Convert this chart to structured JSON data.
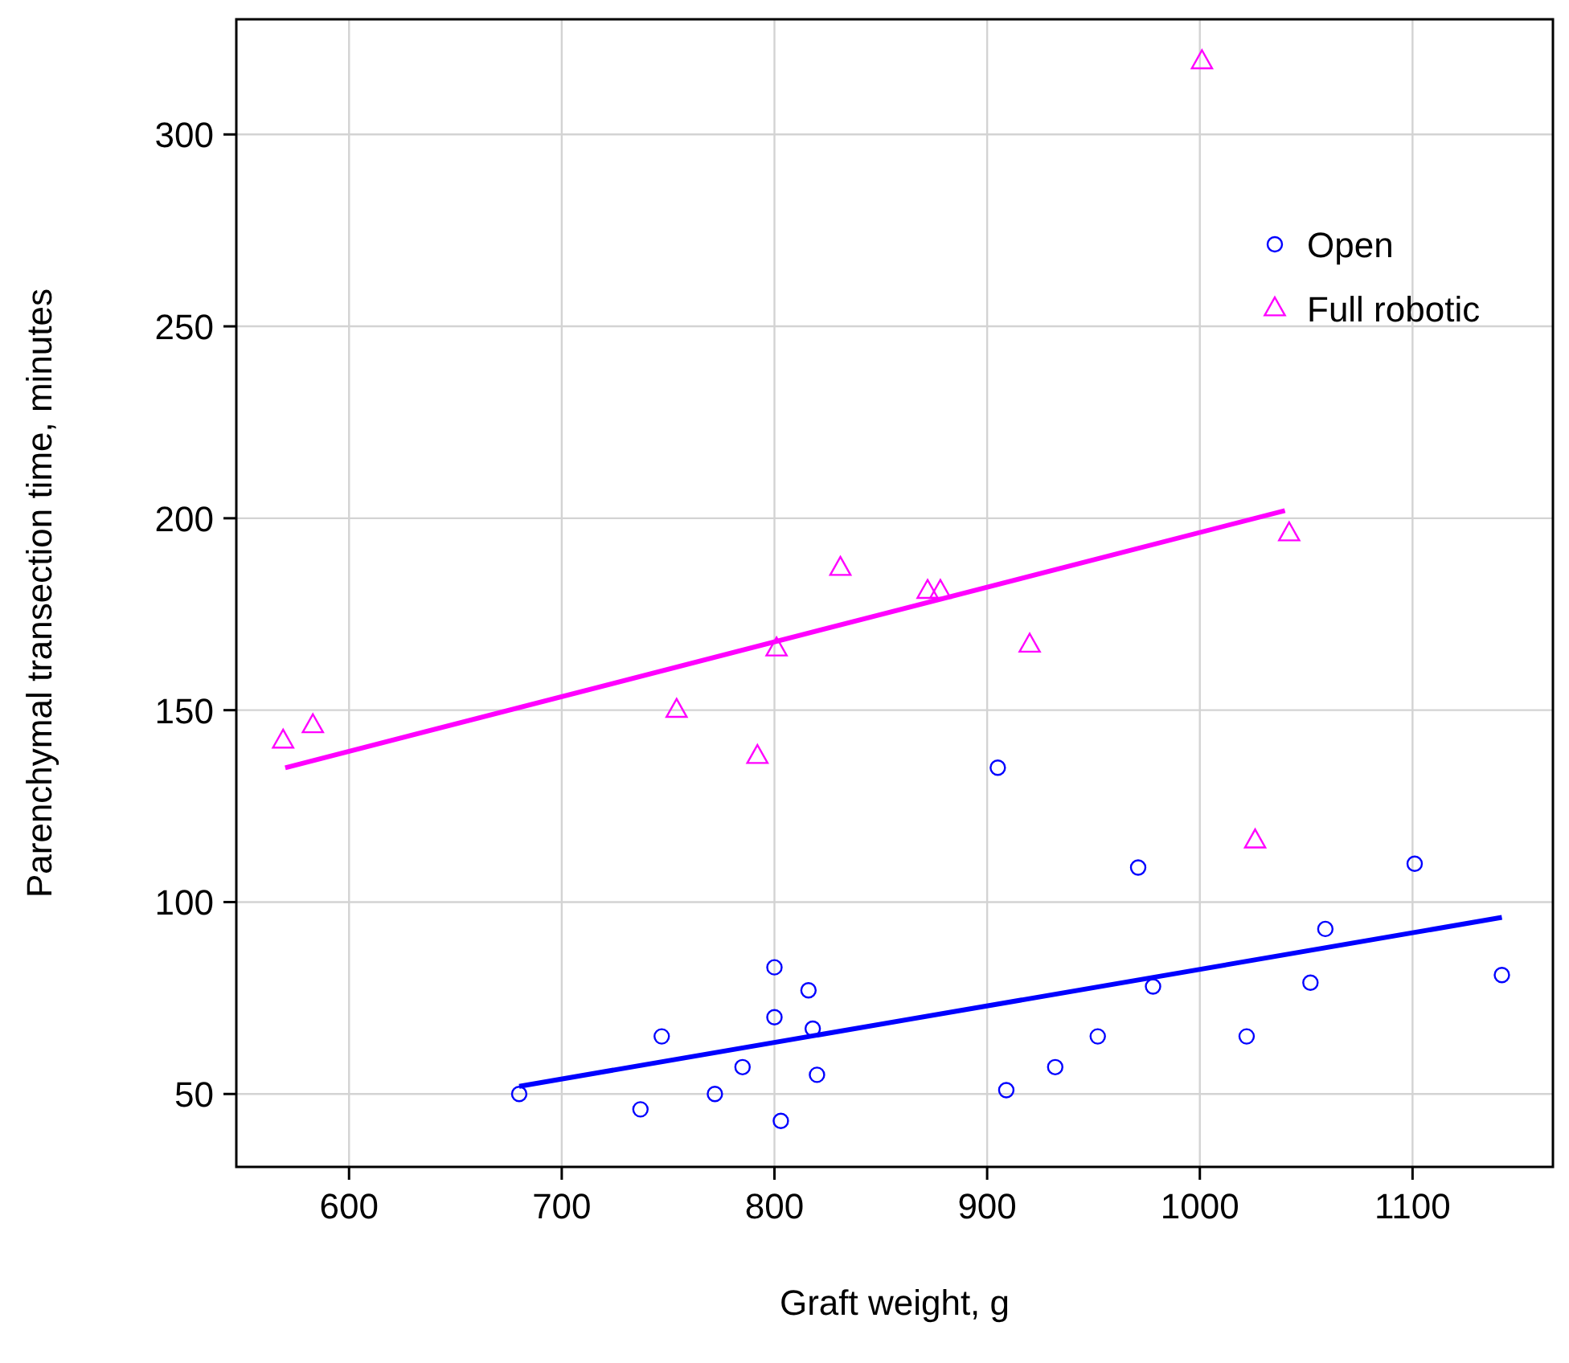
{
  "chart_data": {
    "type": "scatter",
    "xlabel": "Graft weight, g",
    "ylabel": "Parenchymal transection time, minutes",
    "xlim": [
      547,
      1166
    ],
    "ylim": [
      31,
      330
    ],
    "xticks": [
      600,
      700,
      800,
      900,
      1000,
      1100
    ],
    "yticks": [
      50,
      100,
      150,
      200,
      250,
      300
    ],
    "grid": true,
    "legend": "top right",
    "series": [
      {
        "name": "Open",
        "marker": "circle",
        "color": "#0000ff",
        "x": [
          680,
          737,
          747,
          772,
          785,
          800,
          800,
          803,
          816,
          818,
          820,
          905,
          909,
          932,
          952,
          971,
          978,
          1022,
          1052,
          1059,
          1101,
          1142
        ],
        "values": [
          50,
          46,
          65,
          50,
          57,
          83,
          70,
          43,
          77,
          67,
          55,
          135,
          51,
          57,
          65,
          109,
          78,
          65,
          79,
          93,
          110,
          81
        ]
      },
      {
        "name": "Full robotic",
        "marker": "triangle",
        "color": "#ff00ff",
        "x": [
          569,
          583,
          754,
          792,
          801,
          831,
          872,
          878,
          920,
          1001,
          1026,
          1042
        ],
        "values": [
          142,
          146,
          150,
          138,
          166,
          187,
          181,
          181,
          167,
          319,
          116,
          196
        ]
      },
      {
        "type": "line",
        "marker": "none",
        "color": "#0000ff",
        "x": [
          680,
          1142
        ],
        "values": [
          52,
          96
        ]
      },
      {
        "type": "line",
        "marker": "none",
        "color": "#ff00ff",
        "x": [
          570,
          1040
        ],
        "values": [
          135,
          202
        ]
      }
    ]
  }
}
